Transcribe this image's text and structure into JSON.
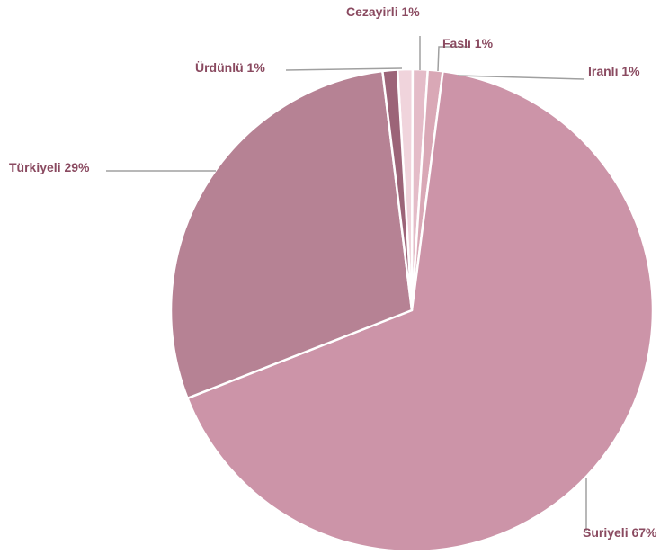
{
  "chart_data": {
    "type": "pie",
    "title": "",
    "slices": [
      {
        "label": "Cezayirli",
        "value": 1,
        "display": "Cezayirli 1%",
        "color": "#f0d4dc"
      },
      {
        "label": "Faslı",
        "value": 1,
        "display": "Faslı 1%",
        "color": "#e4bcc8"
      },
      {
        "label": "Iranlı",
        "value": 1,
        "display": "Iranlı 1%",
        "color": "#d9a8b6"
      },
      {
        "label": "Suriyeli",
        "value": 67,
        "display": "Suriyeli 67%",
        "color": "#cc94a8"
      },
      {
        "label": "Türkiyeli",
        "value": 29,
        "display": "Türkiyeli 29%",
        "color": "#b68294"
      },
      {
        "label": "Ürdünlü",
        "value": 1,
        "display": "Ürdünlü 1%",
        "color": "#9c6478"
      }
    ],
    "legend": "none",
    "label_color": "#8a4a60",
    "leader_line_color": "#a0a0a0"
  }
}
